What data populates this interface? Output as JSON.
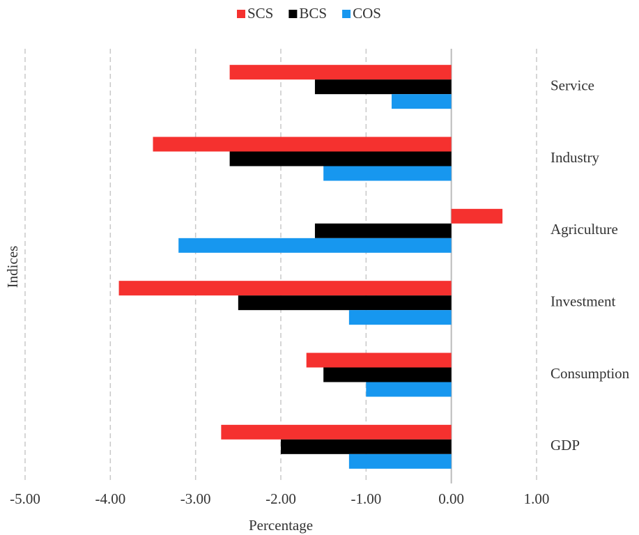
{
  "chart_data": {
    "type": "barh",
    "categories": [
      "Service",
      "Industry",
      "Agriculture",
      "Investment",
      "Consumption",
      "GDP"
    ],
    "series": [
      {
        "name": "SCS",
        "color": "#f5312f",
        "values": [
          -2.6,
          -3.5,
          0.6,
          -3.9,
          -1.7,
          -2.7
        ]
      },
      {
        "name": "BCS",
        "color": "#000000",
        "values": [
          -1.6,
          -2.6,
          -1.6,
          -2.5,
          -1.5,
          -2.0
        ]
      },
      {
        "name": "COS",
        "color": "#1797ef",
        "values": [
          -0.7,
          -1.5,
          -3.2,
          -1.2,
          -1.0,
          -1.2
        ]
      }
    ],
    "xlim": [
      -5,
      1
    ],
    "xticks": [
      {
        "value": -5,
        "label": "-5.00"
      },
      {
        "value": -4,
        "label": "-4.00"
      },
      {
        "value": -3,
        "label": "-3.00"
      },
      {
        "value": -2,
        "label": "-2.00"
      },
      {
        "value": -1,
        "label": "-1.00"
      },
      {
        "value": 0,
        "label": "0.00"
      },
      {
        "value": 1,
        "label": "1.00"
      }
    ],
    "xlabel": "Percentage",
    "ylabel": "Indices",
    "grid": true,
    "legend": "top"
  }
}
